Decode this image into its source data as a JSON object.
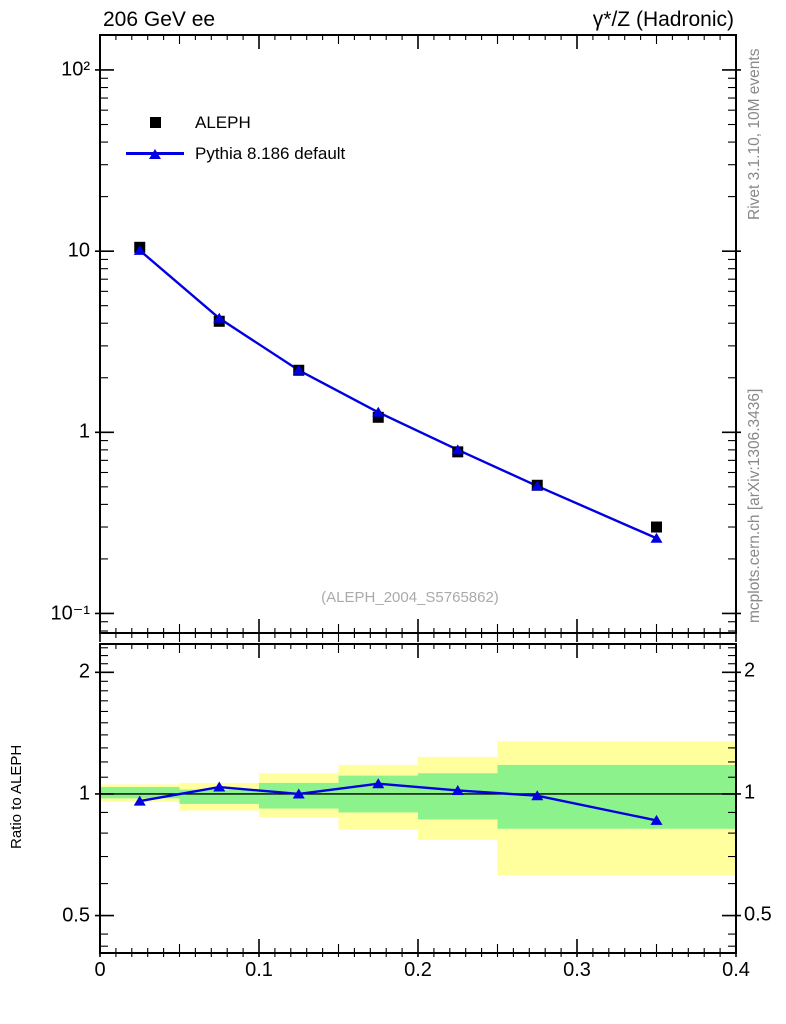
{
  "header": {
    "left": "206 GeV ee",
    "right": "γ*/Z (Hadronic)"
  },
  "side_labels": {
    "top_right": "Rivet 3.1.10,  10M events",
    "bottom_right": "mcplots.cern.ch [arXiv:1306.3436]"
  },
  "watermark": "(ALEPH_2004_S5765862)",
  "legend": {
    "items": [
      {
        "label": "ALEPH",
        "marker": "black-square"
      },
      {
        "label": "Pythia 8.186 default",
        "marker": "blue-triangle-line"
      }
    ]
  },
  "colors": {
    "mc_blue": "#0000e0",
    "data_black": "#000000",
    "band_yellow": "#ffff9e",
    "band_green": "#8cf28c",
    "gray_text": "#888888",
    "watermark_gray": "#aaaaaa"
  },
  "chart_data": [
    {
      "type": "line",
      "panel": "main",
      "yscale": "log",
      "xlim": [
        0,
        0.4
      ],
      "ylim": [
        0.078,
        156
      ],
      "x": [
        0.025,
        0.075,
        0.125,
        0.175,
        0.225,
        0.275,
        0.35
      ],
      "series": [
        {
          "name": "ALEPH",
          "marker": "square",
          "color": "#000000",
          "values": [
            10.5,
            4.1,
            2.2,
            1.21,
            0.78,
            0.51,
            0.3
          ]
        },
        {
          "name": "Pythia 8.186 default",
          "marker": "triangle",
          "color": "#0000e0",
          "values": [
            10.1,
            4.26,
            2.2,
            1.29,
            0.8,
            0.505,
            0.26
          ]
        }
      ],
      "yticks": [
        {
          "v": 100,
          "label": "10²"
        },
        {
          "v": 10,
          "label": "10"
        },
        {
          "v": 1,
          "label": "1"
        },
        {
          "v": 0.1,
          "label": "10⁻¹"
        }
      ]
    },
    {
      "type": "line",
      "panel": "ratio",
      "ylabel": "Ratio to ALEPH",
      "yscale": "log",
      "xlim": [
        0,
        0.4
      ],
      "ylim": [
        0.404,
        2.35
      ],
      "ref_line": 1,
      "x": [
        0.025,
        0.075,
        0.125,
        0.175,
        0.225,
        0.275,
        0.35
      ],
      "values": [
        0.96,
        1.04,
        1.0,
        1.06,
        1.02,
        0.99,
        0.86
      ],
      "yticks": [
        {
          "v": 2,
          "label": "2"
        },
        {
          "v": 1,
          "label": "1"
        },
        {
          "v": 0.5,
          "label": "0.5"
        }
      ],
      "xticks": [
        {
          "v": 0,
          "label": "0"
        },
        {
          "v": 0.1,
          "label": "0.1"
        },
        {
          "v": 0.2,
          "label": "0.2"
        },
        {
          "v": 0.3,
          "label": "0.3"
        },
        {
          "v": 0.4,
          "label": "0.4"
        }
      ],
      "bands": {
        "edges": [
          0,
          0.05,
          0.1,
          0.15,
          0.2,
          0.25,
          0.3,
          0.4
        ],
        "yellow": [
          [
            0.955,
            1.055
          ],
          [
            0.91,
            1.065
          ],
          [
            0.875,
            1.125
          ],
          [
            0.815,
            1.18
          ],
          [
            0.77,
            1.235
          ],
          [
            0.63,
            1.35
          ],
          [
            0.63,
            1.35
          ]
        ],
        "green": [
          [
            0.975,
            1.04
          ],
          [
            0.945,
            1.025
          ],
          [
            0.92,
            1.065
          ],
          [
            0.9,
            1.11
          ],
          [
            0.865,
            1.125
          ],
          [
            0.82,
            1.18
          ],
          [
            0.82,
            1.18
          ]
        ]
      }
    }
  ]
}
